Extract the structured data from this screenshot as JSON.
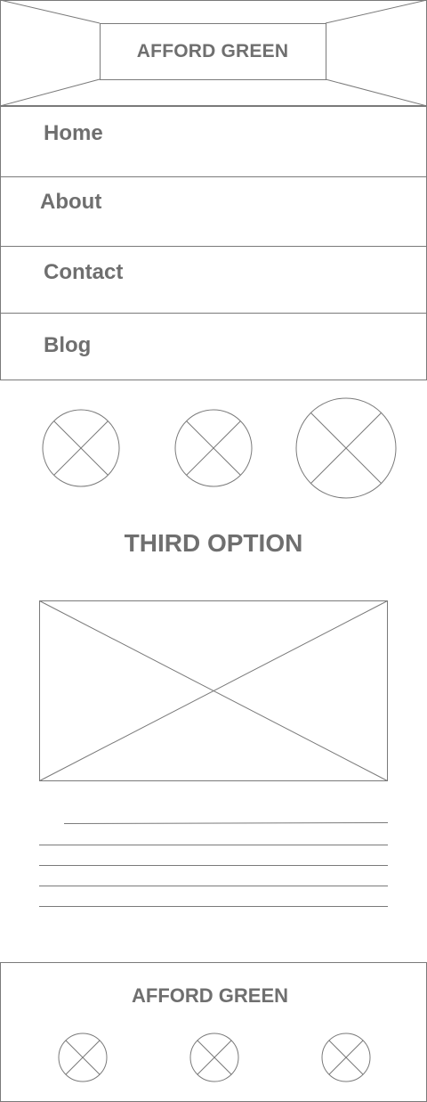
{
  "header": {
    "brand": "AFFORD GREEN"
  },
  "nav": {
    "items": [
      {
        "label": "Home"
      },
      {
        "label": "About"
      },
      {
        "label": "Contact"
      },
      {
        "label": "Blog"
      }
    ]
  },
  "main": {
    "section_title": "THIRD OPTION"
  },
  "footer": {
    "brand": "AFFORD GREEN"
  },
  "colors": {
    "line": "#7a7a7a",
    "text": "#6f6f6f",
    "background": "#ffffff"
  }
}
